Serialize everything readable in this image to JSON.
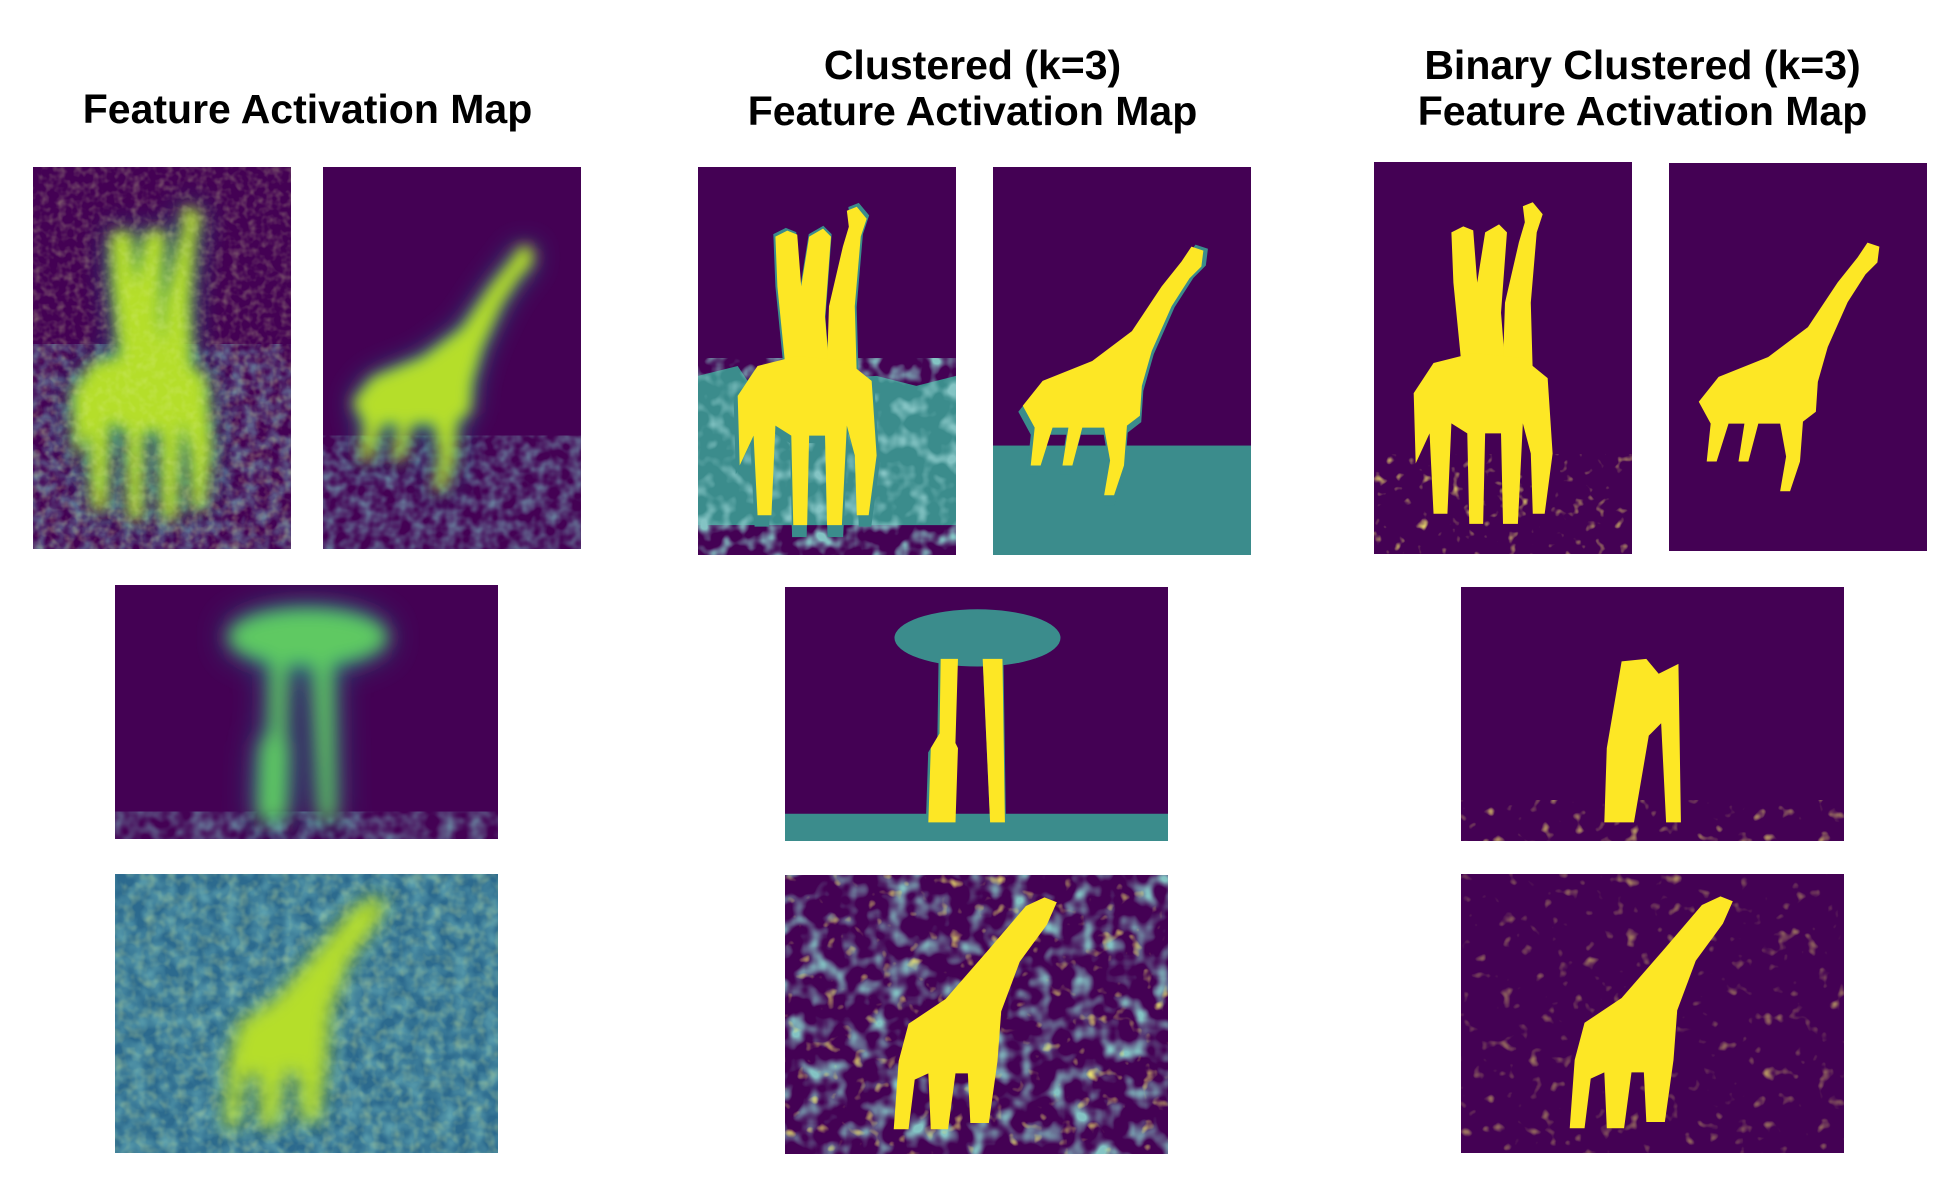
{
  "columns": [
    {
      "title_lines": [
        "Feature Activation Map"
      ]
    },
    {
      "title_lines": [
        "Clustered (k=3)",
        "Feature Activation Map"
      ]
    },
    {
      "title_lines": [
        "Binary Clustered (k=3)",
        "Feature Activation Map"
      ]
    }
  ],
  "palette": {
    "background_dark": "#440154",
    "mid_teal": "#3b8c8c",
    "mid_green": "#21918c",
    "bright_yellow": "#fde725",
    "light_green": "#b5de2b"
  },
  "images": [
    {
      "column": "continuous",
      "subject": "two-giraffes-portrait"
    },
    {
      "column": "continuous",
      "subject": "giraffe-walking-portrait"
    },
    {
      "column": "continuous",
      "subject": "giraffes-under-tree"
    },
    {
      "column": "continuous",
      "subject": "giraffe-in-grass"
    },
    {
      "column": "clustered",
      "subject": "two-giraffes-portrait"
    },
    {
      "column": "clustered",
      "subject": "giraffe-walking-portrait"
    },
    {
      "column": "clustered",
      "subject": "giraffes-under-tree"
    },
    {
      "column": "clustered",
      "subject": "giraffe-in-grass"
    },
    {
      "column": "binary",
      "subject": "two-giraffes-portrait"
    },
    {
      "column": "binary",
      "subject": "giraffe-walking-portrait"
    },
    {
      "column": "binary",
      "subject": "giraffes-under-tree"
    },
    {
      "column": "binary",
      "subject": "giraffe-in-grass"
    }
  ]
}
